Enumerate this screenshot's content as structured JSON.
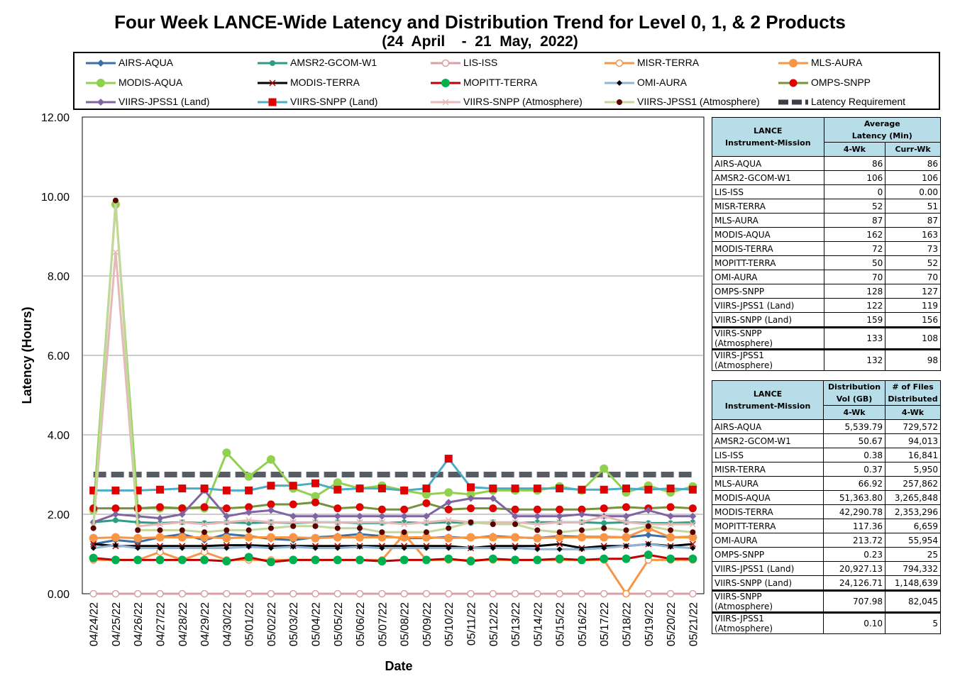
{
  "header": {
    "title": "Four Week LANCE-Wide Latency and Distribution Trend for Level 0, 1, & 2 Products",
    "subtitle": "(24  April    -  21  May,  2022)"
  },
  "chart_data": {
    "type": "line",
    "xlabel": "Date",
    "ylabel": "Latency (Hours)",
    "ylim": [
      0,
      12
    ],
    "yticks": [
      "0.00",
      "2.00",
      "4.00",
      "6.00",
      "8.00",
      "10.00",
      "12.00"
    ],
    "grid": true,
    "legend_position": "top",
    "categories": [
      "04/24/22",
      "04/25/22",
      "04/26/22",
      "04/27/22",
      "04/28/22",
      "04/29/22",
      "04/30/22",
      "05/01/22",
      "05/02/22",
      "05/03/22",
      "05/04/22",
      "05/05/22",
      "05/06/22",
      "05/07/22",
      "05/08/22",
      "05/09/22",
      "05/10/22",
      "05/11/22",
      "05/12/22",
      "05/13/22",
      "05/14/22",
      "05/15/22",
      "05/16/22",
      "05/17/22",
      "05/18/22",
      "05/19/22",
      "05/20/22",
      "05/21/22"
    ],
    "series": [
      {
        "name": "AIRS-AQUA",
        "color": "#3d6fa7",
        "marker": "diamond",
        "values": [
          1.25,
          1.35,
          1.3,
          1.42,
          1.5,
          1.35,
          1.5,
          1.45,
          1.38,
          1.35,
          1.42,
          1.45,
          1.5,
          1.45,
          1.4,
          1.4,
          1.43,
          1.4,
          1.45,
          1.42,
          1.4,
          1.45,
          1.43,
          1.43,
          1.42,
          1.48,
          1.42,
          1.43
        ]
      },
      {
        "name": "AMSR2-GCOM-W1",
        "color": "#2f9c84",
        "marker": "circle",
        "values": [
          1.8,
          1.85,
          1.8,
          1.78,
          1.8,
          1.78,
          1.8,
          1.78,
          1.8,
          1.78,
          1.8,
          1.8,
          1.78,
          1.78,
          1.8,
          1.78,
          1.8,
          1.78,
          1.8,
          1.78,
          1.8,
          1.8,
          1.8,
          1.78,
          1.8,
          1.78,
          1.78,
          1.8
        ]
      },
      {
        "name": "LIS-ISS",
        "color": "#d9a0a8",
        "marker": "open-circle",
        "values": [
          0,
          0,
          0,
          0,
          0,
          0,
          0,
          0,
          0,
          0,
          0,
          0,
          0,
          0,
          0,
          0,
          0,
          0,
          0,
          0,
          0,
          0,
          0,
          0,
          0,
          0,
          0,
          0
        ]
      },
      {
        "name": "MISR-TERRA",
        "color": "#f79646",
        "marker": "open-circle",
        "values": [
          0.85,
          0.85,
          0.85,
          1.05,
          0.85,
          1.05,
          0.85,
          0.85,
          0.85,
          0.85,
          0.85,
          0.85,
          0.85,
          0.85,
          1.5,
          0.85,
          0.85,
          0.85,
          0.85,
          0.85,
          0.85,
          0.85,
          0.85,
          0.85,
          0.0,
          0.85,
          0.85,
          0.85
        ]
      },
      {
        "name": "MLS-AURA",
        "color": "#f79646",
        "marker": "dot",
        "values": [
          1.4,
          1.42,
          1.4,
          1.42,
          1.42,
          1.42,
          1.4,
          1.42,
          1.42,
          1.42,
          1.4,
          1.42,
          1.42,
          1.42,
          1.42,
          1.42,
          1.4,
          1.42,
          1.42,
          1.42,
          1.4,
          1.42,
          1.42,
          1.42,
          1.42,
          1.65,
          1.42,
          1.42
        ]
      },
      {
        "name": "MODIS-AQUA",
        "color": "#92d050",
        "marker": "dot",
        "values": [
          2.1,
          9.8,
          2.15,
          2.15,
          2.15,
          2.15,
          3.55,
          2.95,
          3.38,
          2.65,
          2.45,
          2.8,
          2.65,
          2.72,
          2.6,
          2.5,
          2.55,
          2.5,
          2.6,
          2.6,
          2.6,
          2.7,
          2.6,
          3.15,
          2.55,
          2.72,
          2.55,
          2.7
        ]
      },
      {
        "name": "MODIS-TERRA",
        "color": "#000000",
        "marker": "x",
        "values": [
          1.25,
          1.2,
          1.2,
          1.2,
          1.2,
          1.2,
          1.22,
          1.22,
          1.2,
          1.2,
          1.2,
          1.2,
          1.2,
          1.2,
          1.2,
          1.2,
          1.2,
          1.15,
          1.2,
          1.2,
          1.2,
          1.25,
          1.15,
          1.2,
          1.2,
          1.25,
          1.2,
          1.25
        ]
      },
      {
        "name": "MOPITT-TERRA",
        "color": "#c00000",
        "marker": "dot-green",
        "values": [
          0.9,
          0.85,
          0.85,
          0.85,
          0.85,
          0.85,
          0.82,
          0.92,
          0.8,
          0.85,
          0.85,
          0.85,
          0.85,
          0.82,
          0.85,
          0.85,
          0.88,
          0.82,
          0.88,
          0.85,
          0.85,
          0.88,
          0.85,
          0.88,
          0.88,
          0.98,
          0.88,
          0.88
        ]
      },
      {
        "name": "OMI-AURA",
        "color": "#8fb4d9",
        "marker": "small-diamond",
        "values": [
          1.15,
          1.22,
          1.15,
          1.15,
          1.15,
          1.15,
          1.15,
          1.18,
          1.15,
          1.18,
          1.15,
          1.15,
          1.18,
          1.15,
          1.15,
          1.15,
          1.15,
          1.15,
          1.15,
          1.15,
          1.12,
          1.12,
          1.12,
          1.15,
          1.2,
          1.25,
          1.18,
          1.15
        ]
      },
      {
        "name": "OMPS-SNPP",
        "color": "#76923c",
        "marker": "dot-red",
        "values": [
          2.15,
          2.15,
          2.15,
          2.18,
          2.15,
          2.18,
          2.15,
          2.18,
          2.25,
          2.25,
          2.3,
          2.15,
          2.18,
          2.12,
          2.12,
          2.28,
          2.12,
          2.15,
          2.15,
          2.12,
          2.12,
          2.12,
          2.12,
          2.15,
          2.18,
          2.15,
          2.18,
          2.15
        ]
      },
      {
        "name": "VIIRS-JPSS1 (Land)",
        "color": "#8064a2",
        "marker": "diamond",
        "values": [
          1.8,
          2.0,
          1.95,
          1.9,
          2.0,
          2.6,
          1.95,
          2.05,
          2.1,
          1.95,
          1.95,
          1.95,
          1.95,
          1.95,
          1.95,
          1.95,
          2.3,
          2.4,
          2.4,
          1.95,
          1.95,
          1.95,
          2.0,
          1.95,
          1.95,
          2.1,
          1.95,
          1.95
        ]
      },
      {
        "name": "VIIRS-SNPP (Land)",
        "color": "#4bacc6",
        "marker": "square",
        "values": [
          2.6,
          2.6,
          2.6,
          2.62,
          2.65,
          2.65,
          2.6,
          2.6,
          2.72,
          2.72,
          2.78,
          2.62,
          2.65,
          2.65,
          2.6,
          2.65,
          3.4,
          2.68,
          2.65,
          2.65,
          2.65,
          2.65,
          2.62,
          2.62,
          2.65,
          2.62,
          2.65,
          2.62
        ]
      },
      {
        "name": "VIIRS-SNPP (Atmosphere)",
        "color": "#e6b9b8",
        "marker": "x",
        "values": [
          1.7,
          8.6,
          1.7,
          1.75,
          1.8,
          1.75,
          1.8,
          1.85,
          1.8,
          1.8,
          1.8,
          1.8,
          1.8,
          1.8,
          1.75,
          1.8,
          1.85,
          1.8,
          1.8,
          1.8,
          1.75,
          1.8,
          1.8,
          1.95,
          1.8,
          1.75,
          1.75,
          1.75
        ]
      },
      {
        "name": "VIIRS-JPSS1 (Atmosphere)",
        "color": "#c4d79b",
        "marker": "dot-dark",
        "values": [
          1.65,
          9.9,
          1.6,
          1.6,
          1.6,
          1.55,
          1.6,
          1.6,
          1.65,
          1.7,
          1.7,
          1.65,
          1.65,
          1.55,
          1.55,
          1.55,
          1.65,
          1.8,
          1.75,
          1.75,
          1.6,
          1.55,
          1.6,
          1.65,
          1.6,
          1.7,
          1.6,
          1.55
        ]
      },
      {
        "name": "Latency Requirement",
        "color": "#7f7f7f",
        "marker": "dash",
        "values": [
          3,
          3,
          3,
          3,
          3,
          3,
          3,
          3,
          3,
          3,
          3,
          3,
          3,
          3,
          3,
          3,
          3,
          3,
          3,
          3,
          3,
          3,
          3,
          3,
          3,
          3,
          3,
          3
        ]
      }
    ]
  },
  "latency_table": {
    "header_mission": "LANCE Instrument-Mission",
    "header_mission_l1": "LANCE",
    "header_mission_l2": "Instrument-Mission",
    "header_avg_l1": "Average",
    "header_avg_l2": "Latency (Min)",
    "col_4wk": "4-Wk",
    "col_curr": "Curr-Wk",
    "rows": [
      {
        "name": "AIRS-AQUA",
        "wk4": "86",
        "curr": "86"
      },
      {
        "name": "AMSR2-GCOM-W1",
        "wk4": "106",
        "curr": "106"
      },
      {
        "name": "LIS-ISS",
        "wk4": "0",
        "curr": "0.00"
      },
      {
        "name": "MISR-TERRA",
        "wk4": "52",
        "curr": "51"
      },
      {
        "name": "MLS-AURA",
        "wk4": "87",
        "curr": "87"
      },
      {
        "name": "MODIS-AQUA",
        "wk4": "162",
        "curr": "163"
      },
      {
        "name": "MODIS-TERRA",
        "wk4": "72",
        "curr": "73"
      },
      {
        "name": "MOPITT-TERRA",
        "wk4": "50",
        "curr": "52"
      },
      {
        "name": "OMI-AURA",
        "wk4": "70",
        "curr": "70"
      },
      {
        "name": "OMPS-SNPP",
        "wk4": "128",
        "curr": "127"
      },
      {
        "name": "VIIRS-JPSS1 (Land)",
        "wk4": "122",
        "curr": "119"
      },
      {
        "name": "VIIRS-SNPP (Land)",
        "wk4": "159",
        "curr": "156"
      },
      {
        "name": "VIIRS-SNPP (Atmosphere)",
        "wk4": "133",
        "curr": "108"
      },
      {
        "name": "VIIRS-JPSS1 (Atmosphere)",
        "wk4": "132",
        "curr": "98"
      }
    ]
  },
  "distribution_table": {
    "header_mission_l1": "LANCE",
    "header_mission_l2": "Instrument-Mission",
    "header_vol_l1": "Distribution",
    "header_vol_l2": "Vol (GB)",
    "header_files_l1": "# of Files",
    "header_files_l2": "Distributed",
    "col_4wk": "4-Wk",
    "rows": [
      {
        "name": "AIRS-AQUA",
        "vol": "5,539.79",
        "files": "729,572"
      },
      {
        "name": "AMSR2-GCOM-W1",
        "vol": "50.67",
        "files": "94,013"
      },
      {
        "name": "LIS-ISS",
        "vol": "0.38",
        "files": "16,841"
      },
      {
        "name": "MISR-TERRA",
        "vol": "0.37",
        "files": "5,950"
      },
      {
        "name": "MLS-AURA",
        "vol": "66.92",
        "files": "257,862"
      },
      {
        "name": "MODIS-AQUA",
        "vol": "51,363.80",
        "files": "3,265,848"
      },
      {
        "name": "MODIS-TERRA",
        "vol": "42,290.78",
        "files": "2,353,296"
      },
      {
        "name": "MOPITT-TERRA",
        "vol": "117.36",
        "files": "6,659"
      },
      {
        "name": "OMI-AURA",
        "vol": "213.72",
        "files": "55,954"
      },
      {
        "name": "OMPS-SNPP",
        "vol": "0.23",
        "files": "25"
      },
      {
        "name": "VIIRS-JPSS1 (Land)",
        "vol": "20,927.13",
        "files": "794,332"
      },
      {
        "name": "VIIRS-SNPP (Land)",
        "vol": "24,126.71",
        "files": "1,148,639"
      },
      {
        "name": "VIIRS-SNPP (Atmosphere)",
        "vol": "707.98",
        "files": "82,045"
      },
      {
        "name": "VIIRS-JPSS1 (Atmosphere)",
        "vol": "0.10",
        "files": "5"
      }
    ]
  }
}
